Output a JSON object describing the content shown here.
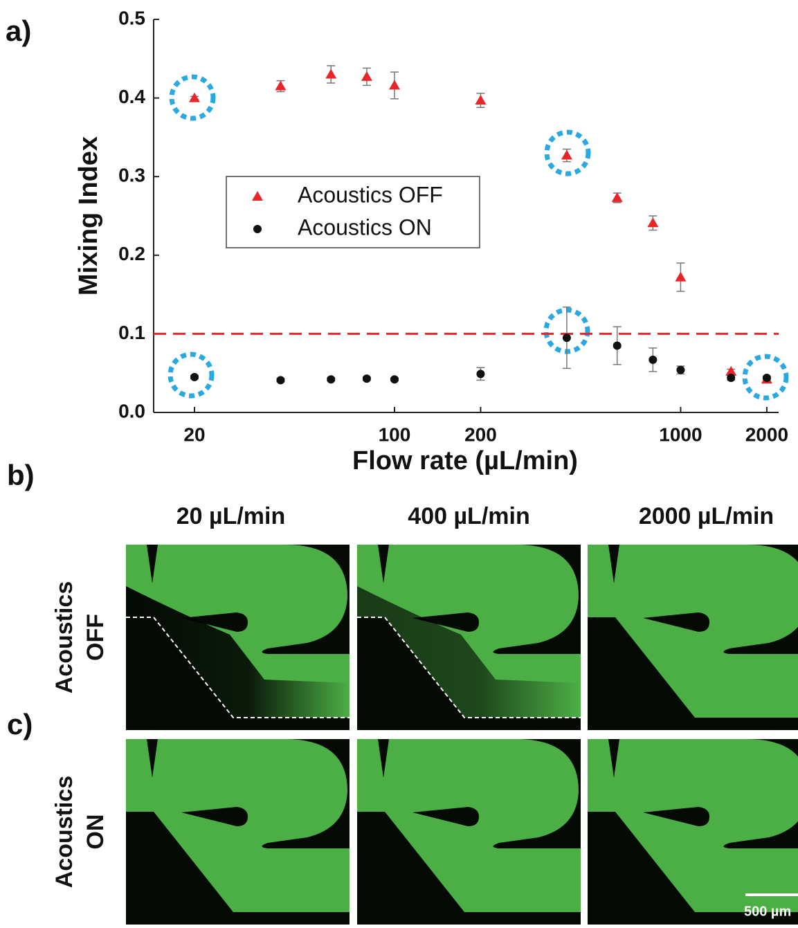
{
  "chart_data": {
    "type": "scatter",
    "panel_label": "a)",
    "x_label": "Flow rate (µL/min)",
    "y_label": "Mixing Index",
    "xscale": "log",
    "xlim": [
      14.4,
      2200
    ],
    "xticks": [
      20,
      100,
      200,
      1000,
      2000
    ],
    "ylim": [
      0,
      0.5
    ],
    "yticks": [
      {
        "value": 0,
        "label": "0.0"
      },
      0.1,
      0.2,
      0.3,
      0.4,
      0.5
    ],
    "legend": "center-left",
    "reference_line": {
      "y": 0.1,
      "color": "#e8262a",
      "style": "dashed"
    },
    "series": [
      {
        "name": "Acoustics OFF",
        "color": "#e8262a",
        "marker": "triangle",
        "x": [
          20,
          40,
          60,
          80,
          100,
          200,
          400,
          600,
          800,
          1000,
          1500,
          2000
        ],
        "values": [
          0.4,
          0.415,
          0.43,
          0.427,
          0.416,
          0.397,
          0.327,
          0.273,
          0.241,
          0.172,
          0.052,
          0.042
        ],
        "errors": [
          0.002,
          0.007,
          0.011,
          0.011,
          0.017,
          0.009,
          0.008,
          0.006,
          0.009,
          0.018,
          0.003,
          0.002
        ]
      },
      {
        "name": "Acoustics ON",
        "color": "#111111",
        "marker": "circle",
        "x": [
          20,
          40,
          60,
          80,
          100,
          200,
          400,
          600,
          800,
          1000,
          1500,
          2000
        ],
        "values": [
          0.045,
          0.041,
          0.042,
          0.043,
          0.042,
          0.049,
          0.095,
          0.085,
          0.067,
          0.054,
          0.044,
          0.044
        ],
        "errors": [
          0.002,
          0.002,
          0.002,
          0.002,
          0.002,
          0.008,
          0.039,
          0.024,
          0.015,
          0.005,
          0.003,
          0.002
        ]
      }
    ]
  },
  "panels": {
    "b_label": "b)",
    "c_label": "c)",
    "columns": [
      "20 µL/min",
      "400 µL/min",
      "2000 µL/min"
    ],
    "rows": [
      [
        "Acoustics",
        "OFF"
      ],
      [
        "Acoustics",
        "ON"
      ]
    ],
    "scale_bar": "500 µm"
  }
}
